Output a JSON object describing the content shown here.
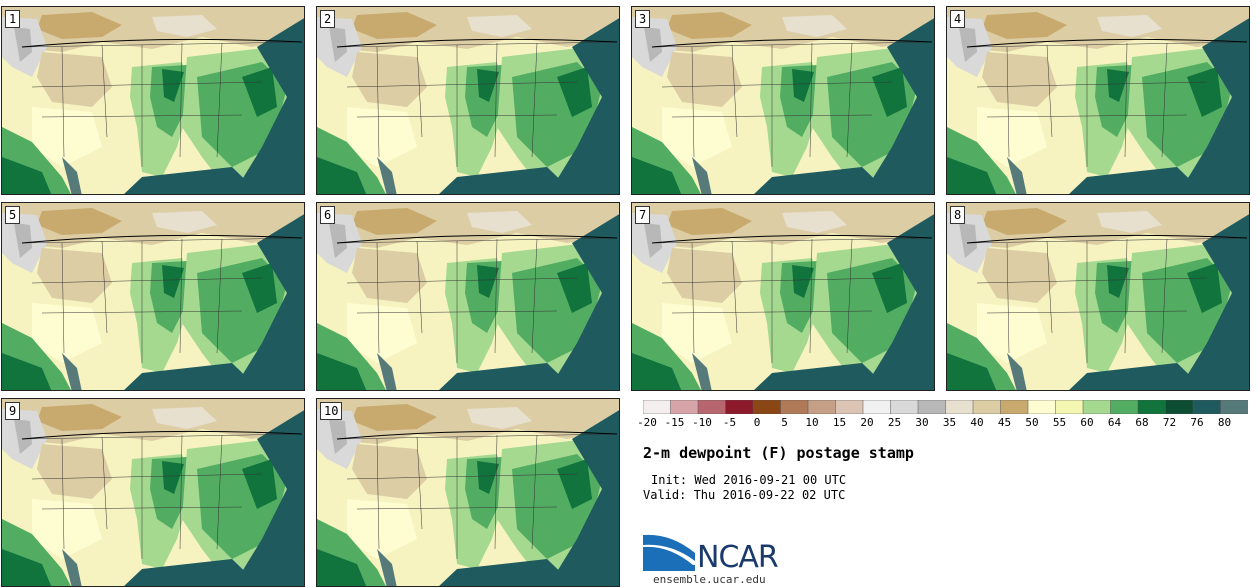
{
  "title": "2-m dewpoint (F) postage stamp",
  "init": "Init: Wed 2016-09-21 00 UTC",
  "valid": "Valid: Thu 2016-09-22 02 UTC",
  "logo": "NCAR",
  "url": "ensemble.ucar.edu",
  "members": [
    "1",
    "2",
    "3",
    "4",
    "5",
    "6",
    "7",
    "8",
    "9",
    "10"
  ],
  "colorbar": {
    "ticks": [
      "-20",
      "-15",
      "-10",
      "-5",
      "0",
      "5",
      "10",
      "15",
      "20",
      "25",
      "30",
      "35",
      "40",
      "45",
      "50",
      "55",
      "60",
      "64",
      "68",
      "72",
      "76",
      "80"
    ],
    "colors": [
      "#f5eeee",
      "#d7a5a9",
      "#b76670",
      "#8c1a2b",
      "#8a4615",
      "#b07a58",
      "#c59f86",
      "#dcc4b4",
      "#f1f1f1",
      "#d9d9d9",
      "#b8b8b8",
      "#e7e0cf",
      "#dccda4",
      "#c8aa6e",
      "#fefdd2",
      "#f4f7b2",
      "#a5d990",
      "#52ad62",
      "#11743d",
      "#0d4d33",
      "#1f5a5e",
      "#567a7a"
    ]
  }
}
